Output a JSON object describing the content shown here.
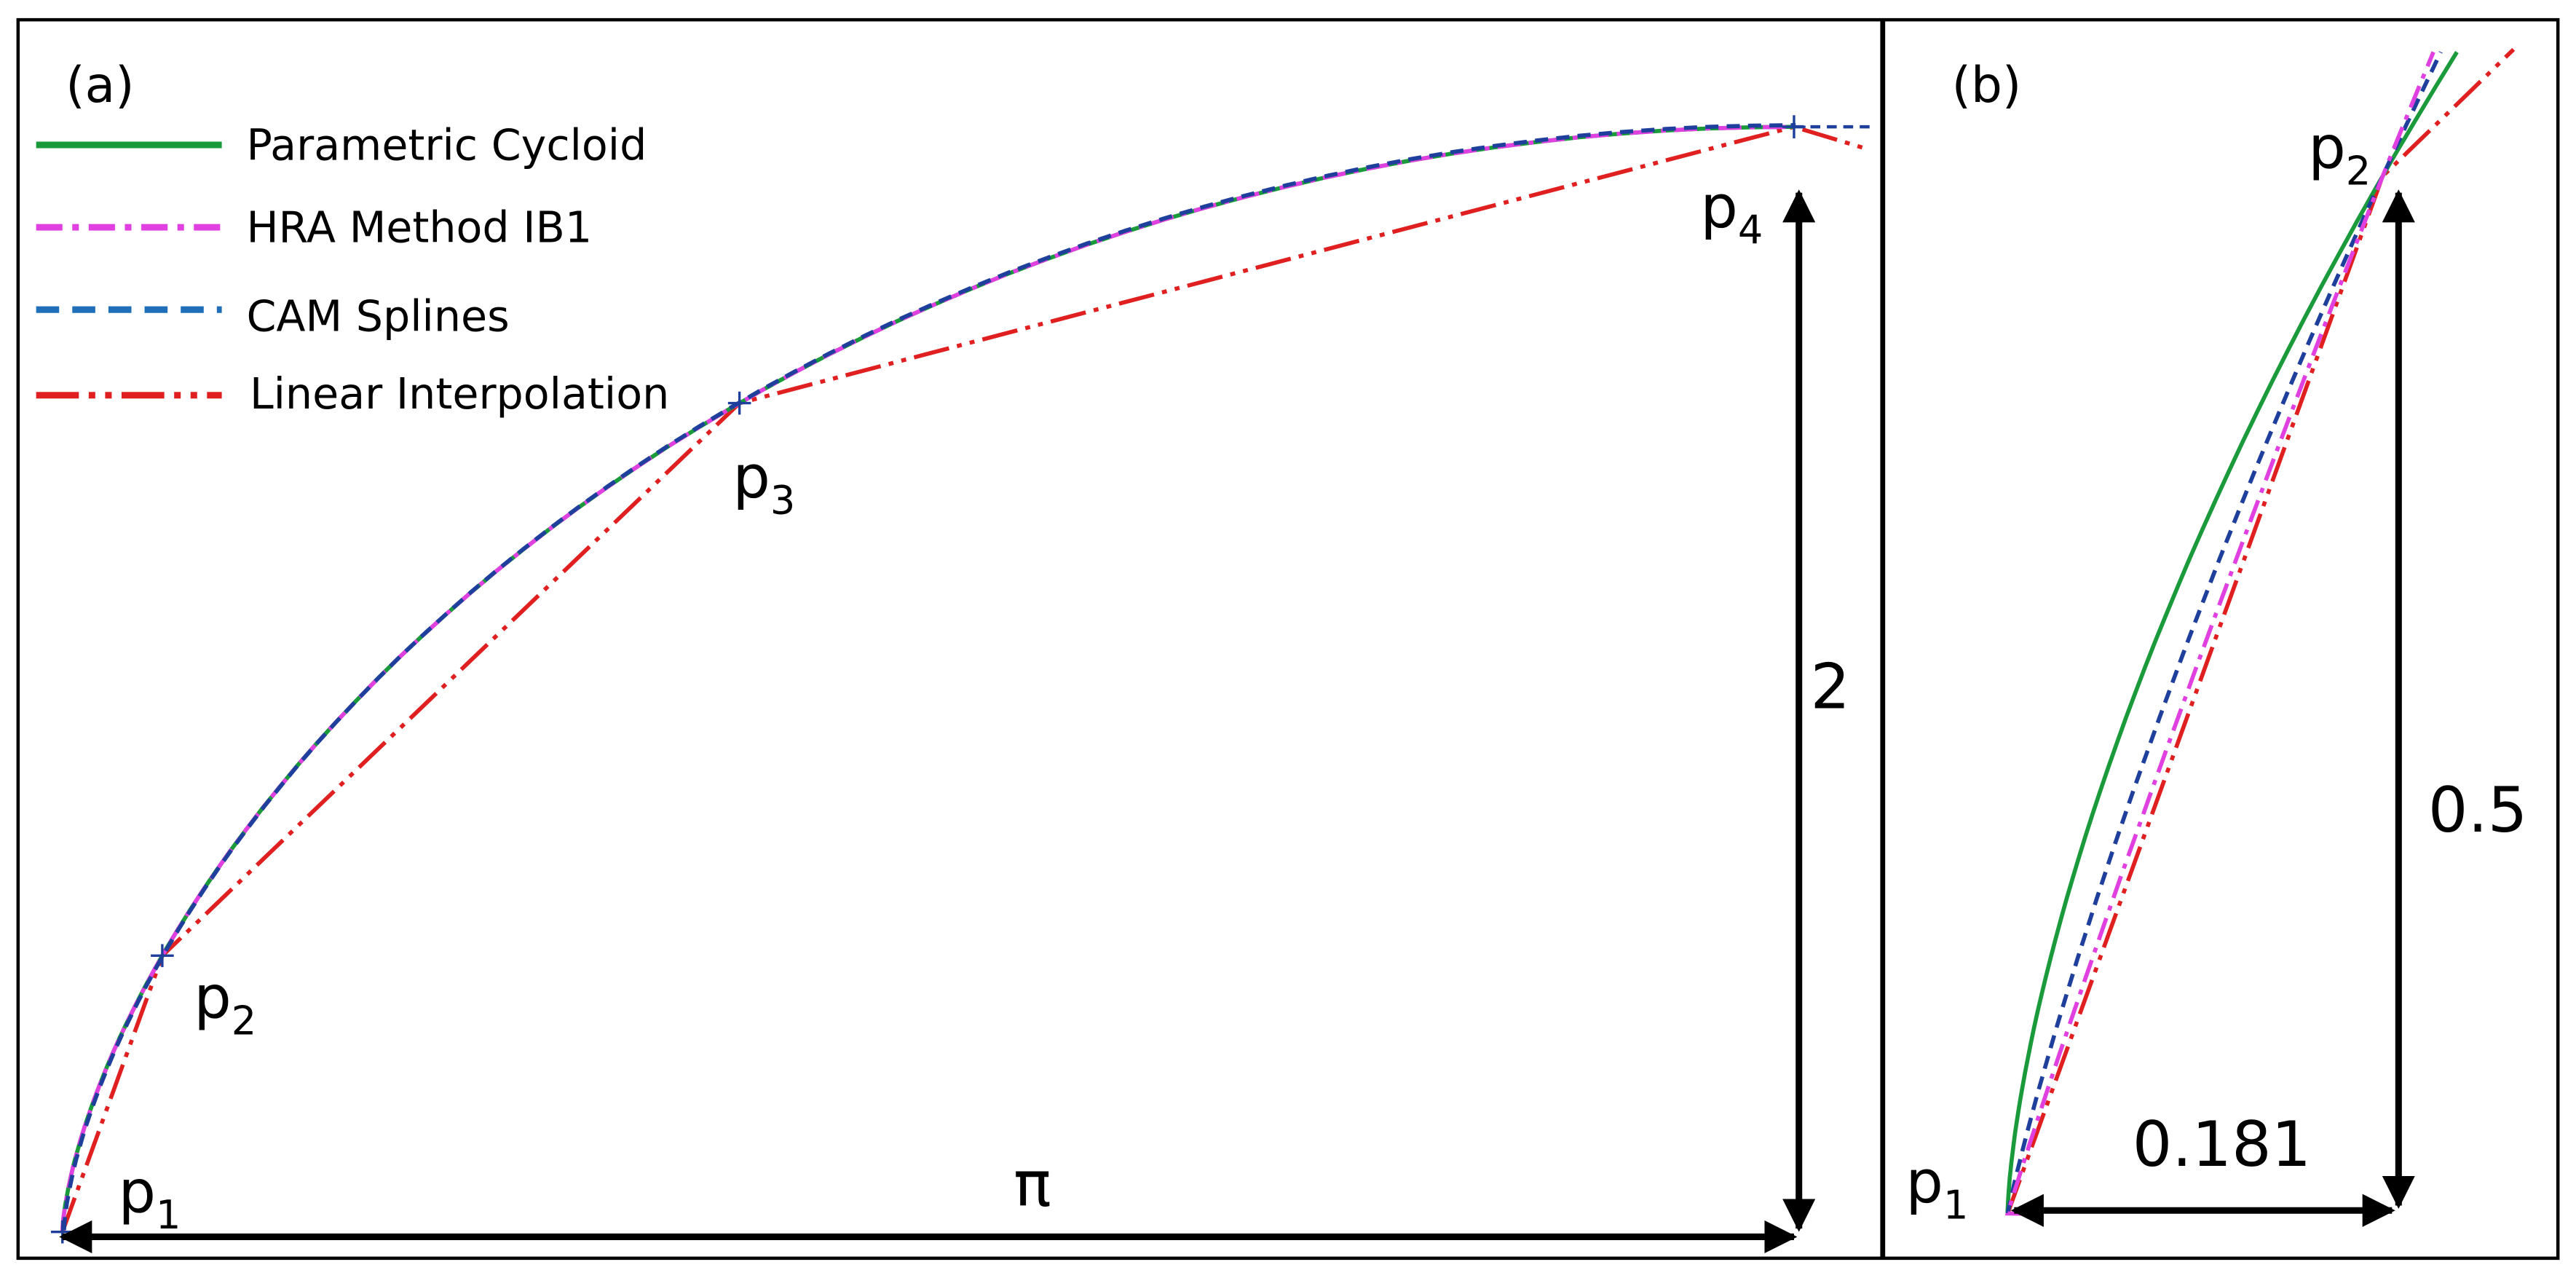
{
  "panels": [
    {
      "label": "(a)",
      "legend": [
        "Parametric Cycloid",
        "HRA Method IB1",
        "CAM Splines",
        "Linear Interpolation"
      ],
      "points": [
        {
          "base": "p",
          "sub": "1"
        },
        {
          "base": "p",
          "sub": "2"
        },
        {
          "base": "p",
          "sub": "3"
        },
        {
          "base": "p",
          "sub": "4"
        }
      ],
      "dimensions": {
        "width": "π",
        "height": "2"
      }
    },
    {
      "label": "(b)",
      "points": [
        {
          "base": "p",
          "sub": "1"
        },
        {
          "base": "p",
          "sub": "2"
        }
      ],
      "dimensions": {
        "width": "0.181",
        "height": "0.5"
      }
    }
  ]
}
